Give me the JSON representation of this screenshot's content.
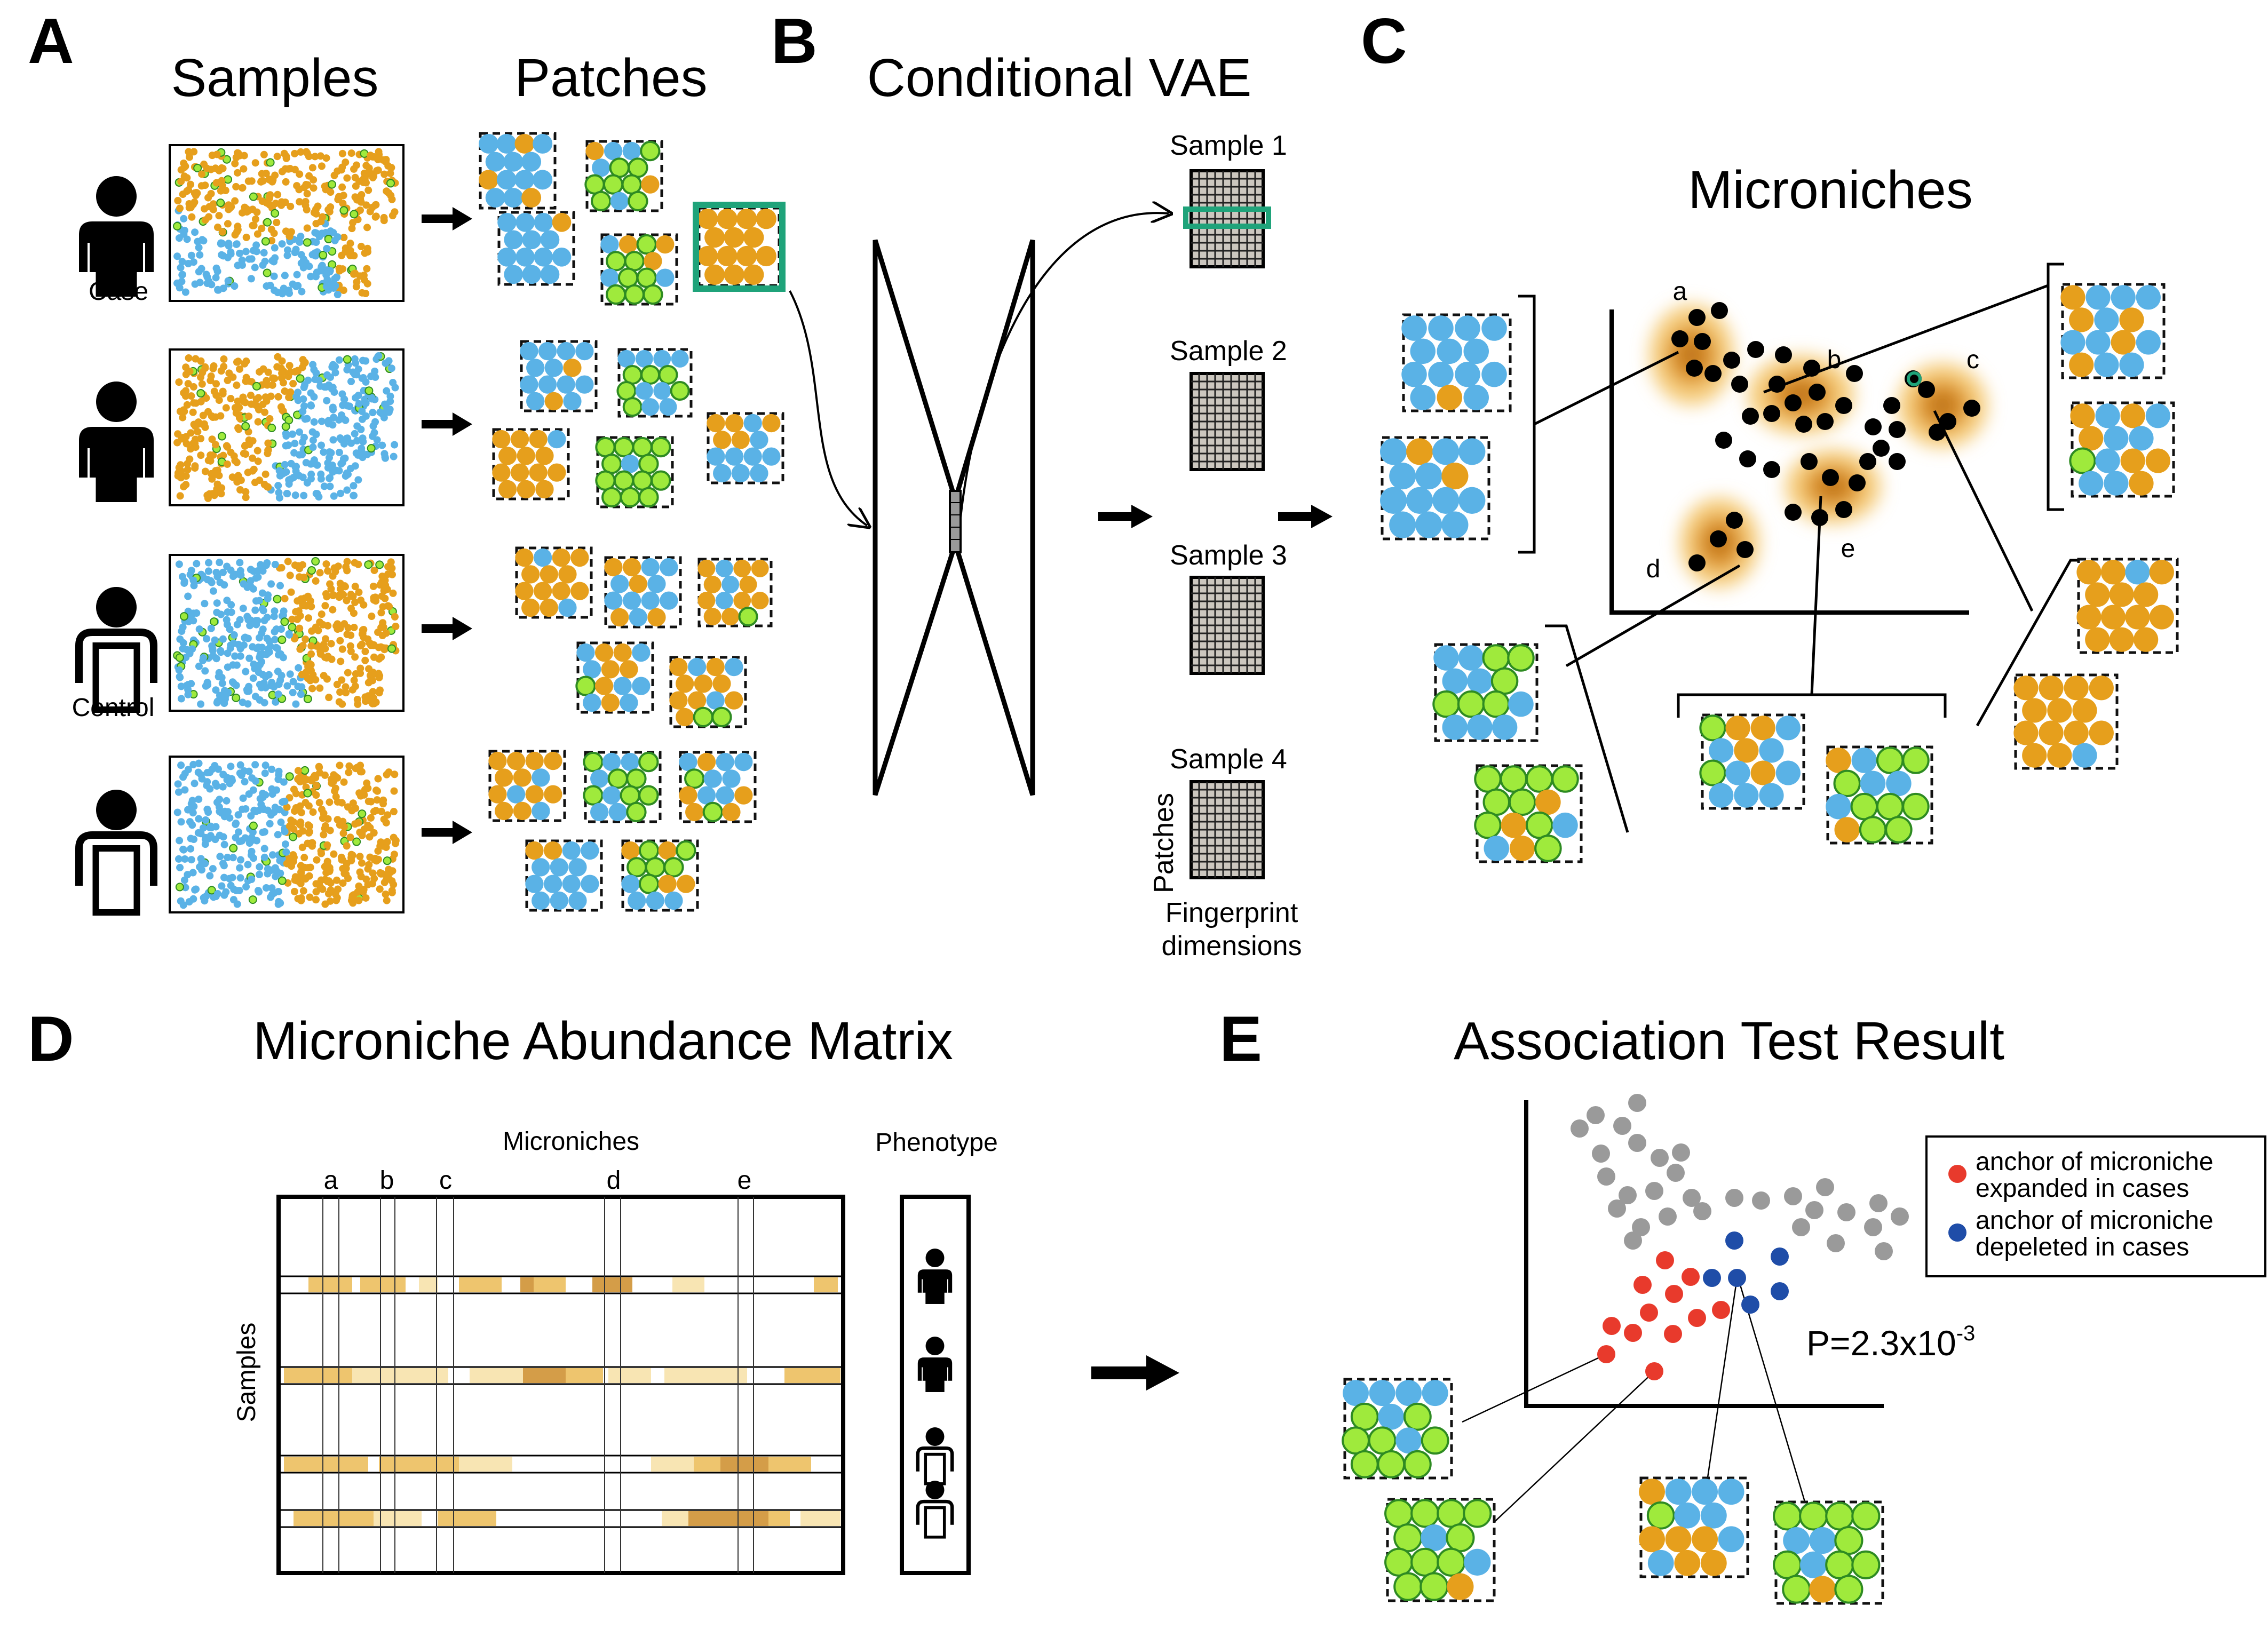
{
  "colors": {
    "orange": "#E69F1C",
    "blue": "#5AB2E6",
    "green": "#9FEA3C",
    "green_edge": "#2E8B22",
    "highlight": "#1FA37A",
    "red": "#E83A2C",
    "navy": "#1F4DA8",
    "grey": "#9A9A9A",
    "heat_light": "#F6DFA0",
    "heat_mid": "#EAB64A",
    "heat_dark": "#C9841A"
  },
  "icons": [
    "person-filled-icon",
    "person-outline-icon",
    "arrow-right-icon",
    "encoder-decoder-icon",
    "fingerprint-grid-icon"
  ],
  "panels": {
    "A": {
      "label": "A",
      "samples_title": "Samples",
      "patches_title": "Patches",
      "rows": [
        {
          "phenotype": "case",
          "caption": "Case"
        },
        {
          "phenotype": "case",
          "caption": ""
        },
        {
          "phenotype": "control",
          "caption": "Control"
        },
        {
          "phenotype": "control",
          "caption": ""
        }
      ]
    },
    "B": {
      "label": "B",
      "title": "Conditional VAE",
      "samples": [
        "Sample 1",
        "Sample 2",
        "Sample 3",
        "Sample 4"
      ],
      "axis_patches": "Patches",
      "axis_fingerprint_line1": "Fingerprint",
      "axis_fingerprint_line2": "dimensions"
    },
    "C": {
      "label": "C",
      "title": "Microniches",
      "clusters": [
        "a",
        "b",
        "c",
        "d",
        "e"
      ]
    },
    "D": {
      "label": "D",
      "title": "Microniche Abundance Matrix",
      "col_header": "Microniches",
      "row_header": "Samples",
      "phenotype_header": "Phenotype",
      "columns": [
        "a",
        "b",
        "c",
        "d",
        "e"
      ],
      "phenotypes": [
        "case",
        "case",
        "control",
        "control"
      ]
    },
    "E": {
      "label": "E",
      "title": "Association Test Result",
      "legend": [
        {
          "line1": "anchor of microniche",
          "line2": "expanded in cases",
          "color": "#E83A2C"
        },
        {
          "line1": "anchor of microniche",
          "line2": "depeleted in cases",
          "color": "#1F4DA8"
        }
      ],
      "pvalue_prefix": "P=2.3x10",
      "pvalue_exponent": "-3"
    }
  }
}
